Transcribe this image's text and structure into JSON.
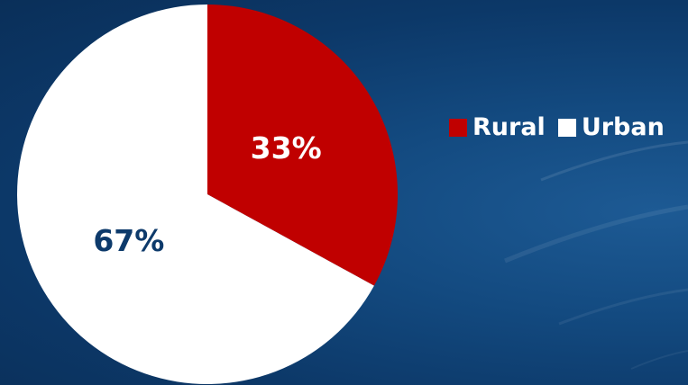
{
  "chart_data": {
    "type": "pie",
    "categories": [
      "Rural",
      "Urban"
    ],
    "values": [
      33,
      67
    ],
    "labels": [
      "33%",
      "67%"
    ],
    "colors": [
      "#c00000",
      "#ffffff"
    ],
    "label_colors": [
      "#ffffff",
      "#0d3a6b"
    ],
    "legend_position": "right",
    "title": ""
  },
  "legend": {
    "items": [
      {
        "label": "Rural",
        "color": "#c00000"
      },
      {
        "label": "Urban",
        "color": "#ffffff"
      }
    ]
  }
}
